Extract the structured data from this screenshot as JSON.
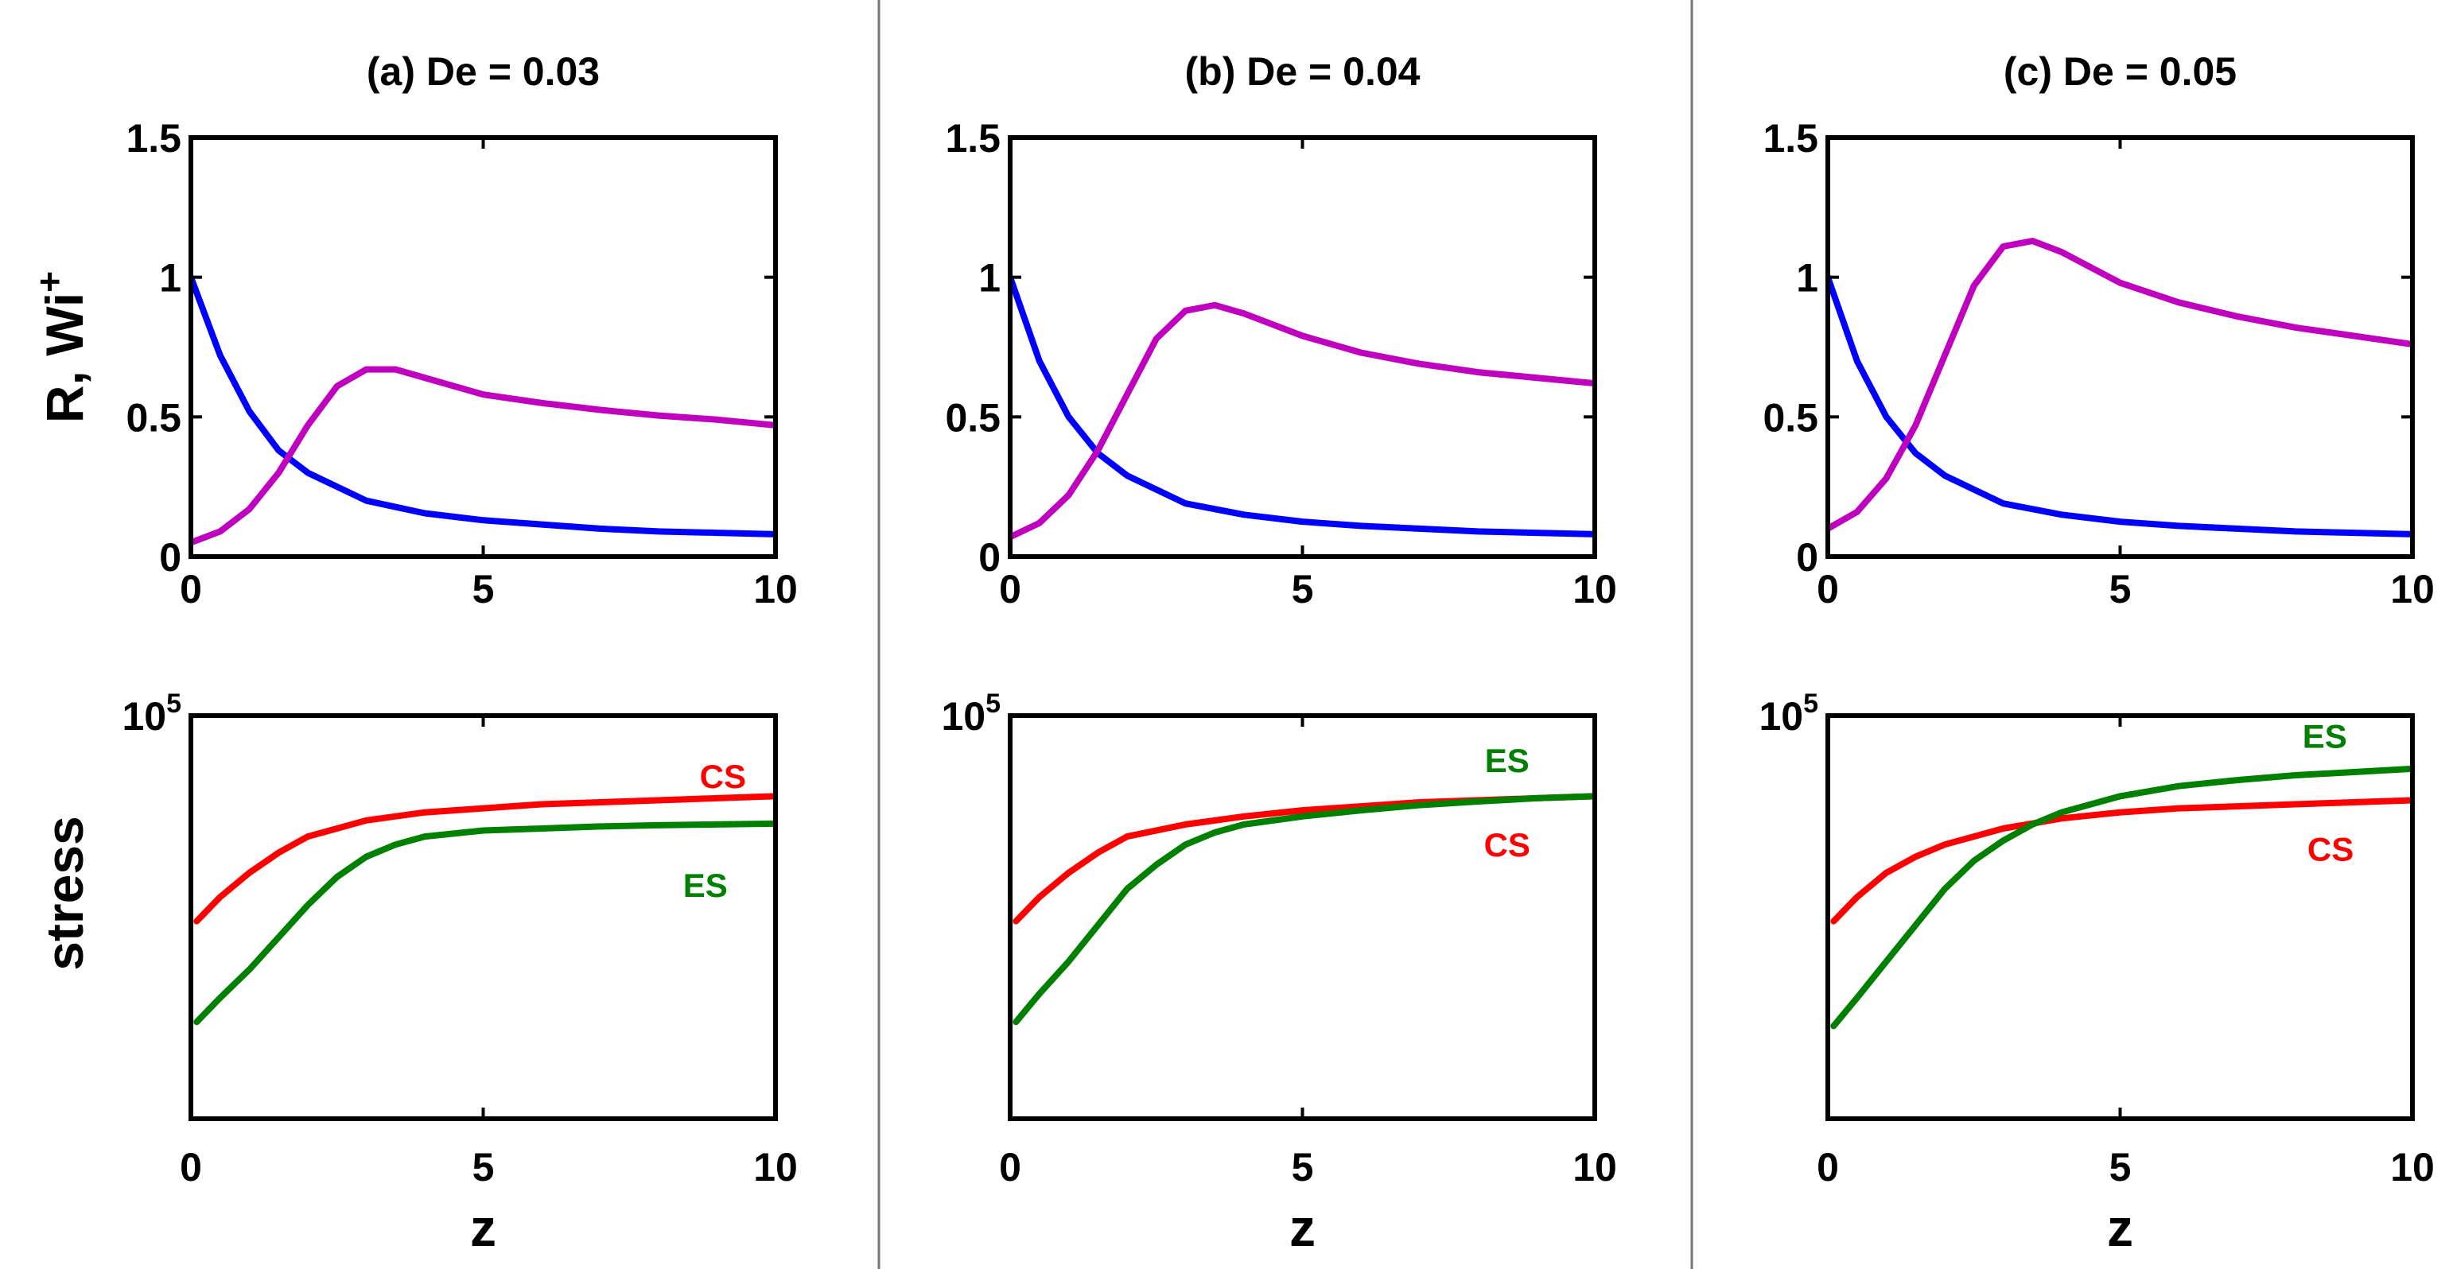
{
  "colors": {
    "R": "#0000ff",
    "Wi": "#bf00bf",
    "CS": "#ff0000",
    "ES": "#008000",
    "divider": "#777777"
  },
  "labels": {
    "top_ylabel_main": "R, Wi",
    "top_ylabel_sup": "+",
    "bottom_ylabel": "stress",
    "xlabel": "z"
  },
  "chart_data": [
    {
      "type": "line",
      "panel": "a",
      "title": "(a) De = 0.03",
      "ylabel": "R, Wi+",
      "xlim": [
        0,
        10
      ],
      "ylim": [
        0,
        1.5
      ],
      "xticks": [
        "0",
        "5",
        "10"
      ],
      "yticks": [
        "0",
        "0.5",
        "1",
        "1.5"
      ],
      "series": [
        {
          "name": "R",
          "x": [
            0,
            0.5,
            1,
            1.5,
            2,
            3,
            4,
            5,
            6,
            7,
            8,
            9,
            10
          ],
          "values": [
            1.0,
            0.72,
            0.52,
            0.38,
            0.3,
            0.2,
            0.155,
            0.13,
            0.115,
            0.1,
            0.09,
            0.085,
            0.08
          ]
        },
        {
          "name": "Wi+",
          "x": [
            0,
            0.5,
            1,
            1.5,
            2,
            2.5,
            3,
            3.5,
            4,
            5,
            6,
            7,
            8,
            9,
            10
          ],
          "values": [
            0.05,
            0.09,
            0.17,
            0.3,
            0.47,
            0.61,
            0.67,
            0.67,
            0.64,
            0.58,
            0.55,
            0.525,
            0.505,
            0.49,
            0.47
          ]
        }
      ]
    },
    {
      "type": "line",
      "panel": "b",
      "title": "(b) De = 0.04",
      "xlim": [
        0,
        10
      ],
      "ylim": [
        0,
        1.5
      ],
      "xticks": [
        "0",
        "5",
        "10"
      ],
      "yticks": [
        "0",
        "0.5",
        "1",
        "1.5"
      ],
      "series": [
        {
          "name": "R",
          "x": [
            0,
            0.5,
            1,
            1.5,
            2,
            3,
            4,
            5,
            6,
            7,
            8,
            9,
            10
          ],
          "values": [
            1.0,
            0.7,
            0.5,
            0.37,
            0.29,
            0.19,
            0.15,
            0.125,
            0.11,
            0.1,
            0.09,
            0.085,
            0.08
          ]
        },
        {
          "name": "Wi+",
          "x": [
            0,
            0.5,
            1,
            1.5,
            2,
            2.5,
            3,
            3.5,
            4,
            5,
            6,
            7,
            8,
            9,
            10
          ],
          "values": [
            0.07,
            0.12,
            0.22,
            0.38,
            0.58,
            0.78,
            0.88,
            0.9,
            0.87,
            0.79,
            0.73,
            0.69,
            0.66,
            0.64,
            0.62
          ]
        }
      ]
    },
    {
      "type": "line",
      "panel": "c",
      "title": "(c) De = 0.05",
      "xlim": [
        0,
        10
      ],
      "ylim": [
        0,
        1.5
      ],
      "xticks": [
        "0",
        "5",
        "10"
      ],
      "yticks": [
        "0",
        "0.5",
        "1",
        "1.5"
      ],
      "series": [
        {
          "name": "R",
          "x": [
            0,
            0.5,
            1,
            1.5,
            2,
            3,
            4,
            5,
            6,
            7,
            8,
            9,
            10
          ],
          "values": [
            1.0,
            0.7,
            0.5,
            0.37,
            0.29,
            0.19,
            0.15,
            0.125,
            0.11,
            0.1,
            0.09,
            0.085,
            0.08
          ]
        },
        {
          "name": "Wi+",
          "x": [
            0,
            0.5,
            1,
            1.5,
            2,
            2.5,
            3,
            3.5,
            4,
            5,
            6,
            7,
            8,
            9,
            10
          ],
          "values": [
            0.1,
            0.16,
            0.28,
            0.47,
            0.72,
            0.97,
            1.11,
            1.13,
            1.09,
            0.98,
            0.91,
            0.86,
            0.82,
            0.79,
            0.76
          ]
        }
      ]
    },
    {
      "type": "line",
      "panel": "a",
      "ylabel": "stress",
      "xlabel": "z",
      "yscale": "log",
      "xlim": [
        0,
        10
      ],
      "ylim_relative": [
        0,
        1
      ],
      "xticks": [
        "0",
        "5",
        "10"
      ],
      "ytick_label": {
        "base": "10",
        "exponent": "5"
      },
      "series_labels": [
        {
          "name": "CS",
          "text": "CS",
          "x": 9.1,
          "y": 0.85
        },
        {
          "name": "ES",
          "text": "ES",
          "x": 8.8,
          "y": 0.58
        }
      ],
      "series": [
        {
          "name": "CS",
          "x": [
            0.1,
            0.5,
            1,
            1.5,
            2,
            3,
            4,
            5,
            6,
            7,
            8,
            9,
            10
          ],
          "values": [
            0.49,
            0.55,
            0.61,
            0.66,
            0.7,
            0.74,
            0.76,
            0.77,
            0.78,
            0.785,
            0.79,
            0.795,
            0.8
          ]
        },
        {
          "name": "ES",
          "x": [
            0.1,
            0.5,
            1,
            1.5,
            2,
            2.5,
            3,
            3.5,
            4,
            5,
            6,
            7,
            8,
            9,
            10
          ],
          "values": [
            0.24,
            0.3,
            0.37,
            0.45,
            0.53,
            0.6,
            0.65,
            0.68,
            0.7,
            0.715,
            0.72,
            0.725,
            0.728,
            0.73,
            0.732
          ]
        }
      ]
    },
    {
      "type": "line",
      "panel": "b",
      "xlabel": "z",
      "yscale": "log",
      "xlim": [
        0,
        10
      ],
      "ylim_relative": [
        0,
        1
      ],
      "xticks": [
        "0",
        "5",
        "10"
      ],
      "ytick_label": {
        "base": "10",
        "exponent": "5"
      },
      "series_labels": [
        {
          "name": "ES",
          "text": "ES",
          "x": 8.5,
          "y": 0.89
        },
        {
          "name": "CS",
          "text": "CS",
          "x": 8.5,
          "y": 0.68
        }
      ],
      "series": [
        {
          "name": "CS",
          "x": [
            0.1,
            0.5,
            1,
            1.5,
            2,
            3,
            4,
            5,
            6,
            7,
            8,
            9,
            10
          ],
          "values": [
            0.49,
            0.55,
            0.61,
            0.66,
            0.7,
            0.73,
            0.75,
            0.765,
            0.775,
            0.785,
            0.79,
            0.795,
            0.8
          ]
        },
        {
          "name": "ES",
          "x": [
            0.1,
            0.5,
            1,
            1.5,
            2,
            2.5,
            3,
            3.5,
            4,
            5,
            6,
            7,
            8,
            9,
            10
          ],
          "values": [
            0.24,
            0.31,
            0.39,
            0.48,
            0.57,
            0.63,
            0.68,
            0.71,
            0.73,
            0.75,
            0.765,
            0.778,
            0.787,
            0.795,
            0.8
          ]
        }
      ]
    },
    {
      "type": "line",
      "panel": "c",
      "xlabel": "z",
      "yscale": "log",
      "xlim": [
        0,
        10
      ],
      "ylim_relative": [
        0,
        1
      ],
      "xticks": [
        "0",
        "5",
        "10"
      ],
      "ytick_label": {
        "base": "10",
        "exponent": "5"
      },
      "series_labels": [
        {
          "name": "ES",
          "text": "ES",
          "x": 8.5,
          "y": 0.95
        },
        {
          "name": "CS",
          "text": "CS",
          "x": 8.6,
          "y": 0.67
        }
      ],
      "series": [
        {
          "name": "CS",
          "x": [
            0.1,
            0.5,
            1,
            1.5,
            2,
            3,
            4,
            5,
            6,
            7,
            8,
            9,
            10
          ],
          "values": [
            0.49,
            0.55,
            0.61,
            0.65,
            0.68,
            0.72,
            0.745,
            0.76,
            0.77,
            0.775,
            0.78,
            0.785,
            0.79
          ]
        },
        {
          "name": "ES",
          "x": [
            0.1,
            0.5,
            1,
            1.5,
            2,
            2.5,
            3,
            3.5,
            4,
            5,
            6,
            7,
            8,
            9,
            10
          ],
          "values": [
            0.23,
            0.3,
            0.39,
            0.48,
            0.57,
            0.64,
            0.69,
            0.73,
            0.76,
            0.8,
            0.825,
            0.84,
            0.852,
            0.86,
            0.868
          ]
        }
      ]
    }
  ]
}
